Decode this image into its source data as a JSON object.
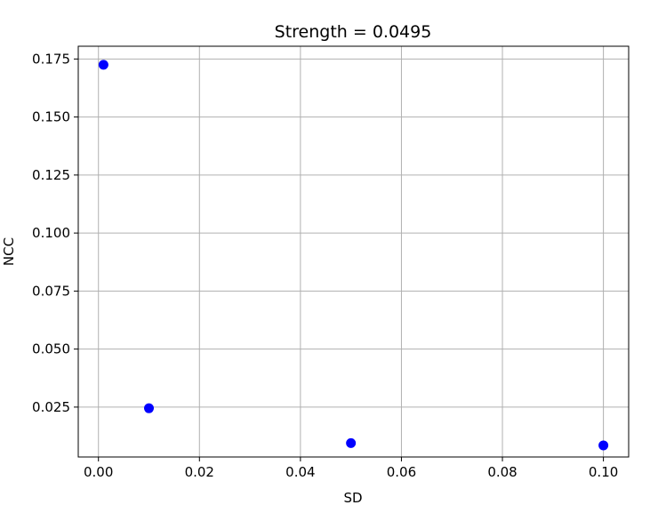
{
  "chart_data": {
    "type": "scatter",
    "title": "Strength = 0.0495",
    "xlabel": "SD",
    "ylabel": "NCC",
    "xlim": [
      -0.004,
      0.105
    ],
    "ylim": [
      0.0035,
      0.1805
    ],
    "x_ticks": [
      0.0,
      0.02,
      0.04,
      0.06,
      0.08,
      0.1
    ],
    "x_tick_labels": [
      "0.00",
      "0.02",
      "0.04",
      "0.06",
      "0.08",
      "0.10"
    ],
    "y_ticks": [
      0.025,
      0.05,
      0.075,
      0.1,
      0.125,
      0.15,
      0.175
    ],
    "y_tick_labels": [
      "0.025",
      "0.050",
      "0.075",
      "0.100",
      "0.125",
      "0.150",
      "0.175"
    ],
    "grid": true,
    "series": [
      {
        "color": "#0000ff",
        "points": [
          {
            "x": 0.001,
            "y": 0.1725
          },
          {
            "x": 0.01,
            "y": 0.0245
          },
          {
            "x": 0.05,
            "y": 0.0095
          },
          {
            "x": 0.1,
            "y": 0.0085
          }
        ]
      }
    ]
  }
}
